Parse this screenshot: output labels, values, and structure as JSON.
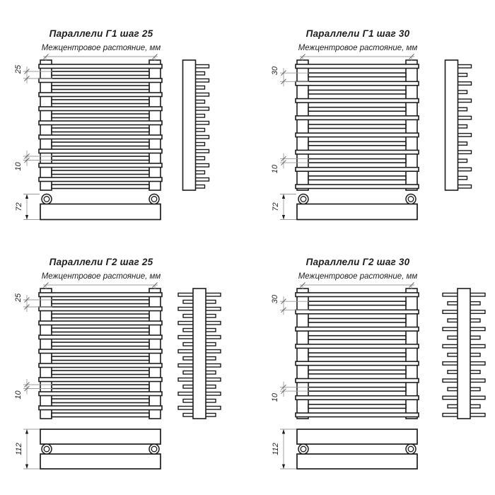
{
  "style": {
    "background": "#ffffff",
    "line_color": "#1d1d1d",
    "dim_color": "#9b9b9b",
    "tick_color": "#666666",
    "text_color": "#1f1f1f"
  },
  "subtitle": "Межцентровое растояние, мм",
  "quadrants": [
    {
      "id": "g1-step25",
      "title": "Параллели Г1 шаг 25",
      "row_type": "single",
      "tube_count": 18,
      "dims": {
        "pitch": "25",
        "tube": "10",
        "depth": "72"
      }
    },
    {
      "id": "g1-step30",
      "title": "Параллели Г1 шаг 30",
      "row_type": "single",
      "tube_count": 15,
      "dims": {
        "pitch": "30",
        "tube": "10",
        "depth": "72"
      }
    },
    {
      "id": "g2-step25",
      "title": "Параллели Г2 шаг 25",
      "row_type": "double",
      "tube_count": 18,
      "dims": {
        "pitch": "25",
        "tube": "10",
        "depth": "112"
      }
    },
    {
      "id": "g2-step30",
      "title": "Параллели Г2 шаг 30",
      "row_type": "double",
      "tube_count": 15,
      "dims": {
        "pitch": "30",
        "tube": "10",
        "depth": "112"
      }
    }
  ]
}
